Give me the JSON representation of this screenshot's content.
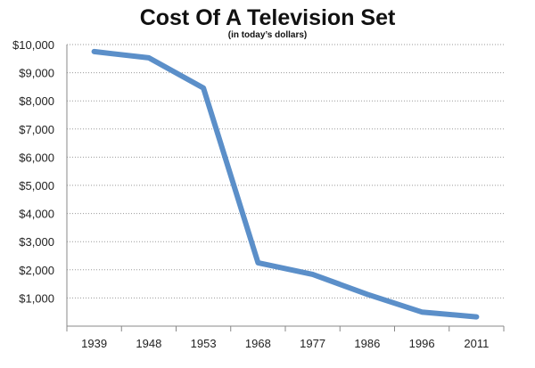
{
  "chart_data": {
    "type": "line",
    "title": "Cost Of A Television Set",
    "subtitle": "(in today’s dollars)",
    "categories": [
      "1939",
      "1948",
      "1953",
      "1968",
      "1977",
      "1986",
      "1996",
      "2011"
    ],
    "series": [
      {
        "values": [
          9750,
          9530,
          8460,
          2250,
          1840,
          1130,
          500,
          330
        ]
      }
    ],
    "ylim": [
      0,
      10000
    ],
    "yticks": [
      0,
      1000,
      2000,
      3000,
      4000,
      5000,
      6000,
      7000,
      8000,
      9000,
      10000
    ],
    "ytick_labels": [
      "",
      "$1,000",
      "$2,000",
      "$3,000",
      "$4,000",
      "$5,000",
      "$6,000",
      "$7,000",
      "$8,000",
      "$9,000",
      "$10,000"
    ],
    "grid": true,
    "legend": "none",
    "line_color": "#5b8fc9"
  }
}
